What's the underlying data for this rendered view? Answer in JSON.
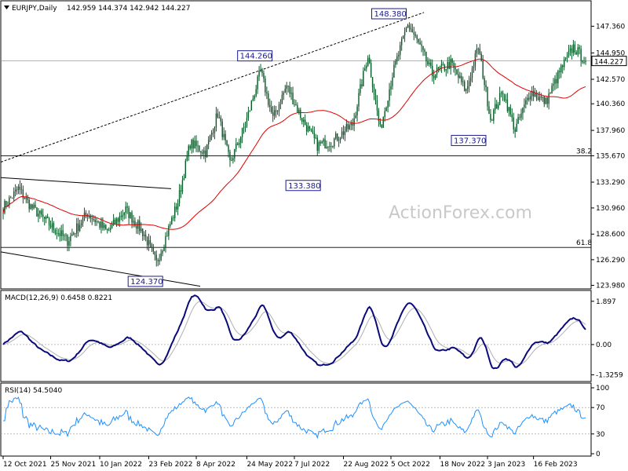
{
  "header": {
    "symbol": "EURJPY,Daily",
    "ohlc": "142.959 144.374 142.942 144.227"
  },
  "watermark": "ActionForex.com",
  "chart_data": [
    {
      "type": "candlestick",
      "panel": "price",
      "title": "EURJPY,Daily 142.959 144.374 142.942 144.227",
      "y_ticks": [
        147.36,
        144.95,
        142.57,
        140.36,
        137.96,
        135.67,
        133.29,
        130.96,
        128.6,
        126.29,
        123.98
      ],
      "y_tick_labels": [
        "147.360",
        "144.950",
        "142.570",
        "140.360",
        "137.960",
        "135.670",
        "133.290",
        "130.960",
        "128.600",
        "126.290",
        "123.980"
      ],
      "ylim": [
        123.8,
        149.3
      ],
      "last_price": "144.227",
      "x_ticks": [
        "12 Oct 2021",
        "25 Nov 2021",
        "10 Jan 2022",
        "23 Feb 2022",
        "8 Apr 2022",
        "24 May 2022",
        "7 Jul 2022",
        "22 Aug 2022",
        "5 Oct 2022",
        "18 Nov 2022",
        "3 Jan 2023",
        "16 Feb 2023"
      ],
      "anchors": [
        {
          "date_index": 0,
          "close": 131.0
        },
        {
          "date_index": 10,
          "close": 132.7
        },
        {
          "date_index": 18,
          "close": 131.1
        },
        {
          "date_index": 30,
          "close": 129.5
        },
        {
          "date_index": 42,
          "close": 128.0
        },
        {
          "date_index": 55,
          "close": 130.5
        },
        {
          "date_index": 68,
          "close": 128.8
        },
        {
          "date_index": 80,
          "close": 130.8
        },
        {
          "date_index": 92,
          "close": 128.6
        },
        {
          "date_index": 100,
          "close": 126.0
        },
        {
          "date_index": 104,
          "close": 127.5
        },
        {
          "date_index": 114,
          "close": 131.5
        },
        {
          "date_index": 122,
          "close": 136.8
        },
        {
          "date_index": 132,
          "close": 136.0
        },
        {
          "date_index": 140,
          "close": 139.5
        },
        {
          "date_index": 148,
          "close": 135.0
        },
        {
          "date_index": 158,
          "close": 138.5
        },
        {
          "date_index": 168,
          "close": 143.3
        },
        {
          "date_index": 176,
          "close": 139.0
        },
        {
          "date_index": 185,
          "close": 142.0
        },
        {
          "date_index": 195,
          "close": 139.0
        },
        {
          "date_index": 205,
          "close": 136.6
        },
        {
          "date_index": 215,
          "close": 137.0
        },
        {
          "date_index": 228,
          "close": 138.5
        },
        {
          "date_index": 238,
          "close": 144.8
        },
        {
          "date_index": 246,
          "close": 138.0
        },
        {
          "date_index": 254,
          "close": 143.0
        },
        {
          "date_index": 264,
          "close": 147.6
        },
        {
          "date_index": 272,
          "close": 145.5
        },
        {
          "date_index": 280,
          "close": 143.0
        },
        {
          "date_index": 292,
          "close": 144.0
        },
        {
          "date_index": 302,
          "close": 141.5
        },
        {
          "date_index": 310,
          "close": 145.5
        },
        {
          "date_index": 318,
          "close": 139.0
        },
        {
          "date_index": 326,
          "close": 141.5
        },
        {
          "date_index": 334,
          "close": 138.0
        },
        {
          "date_index": 344,
          "close": 141.5
        },
        {
          "date_index": 354,
          "close": 140.5
        },
        {
          "date_index": 364,
          "close": 143.5
        },
        {
          "date_index": 372,
          "close": 145.5
        },
        {
          "date_index": 380,
          "close": 144.2
        }
      ],
      "labels": [
        {
          "text": "148.380",
          "date_index": 264,
          "price": 148.38
        },
        {
          "text": "144.260",
          "date_index": 176,
          "price": 144.26
        },
        {
          "text": "133.380",
          "date_index": 208,
          "price": 133.38
        },
        {
          "text": "137.370",
          "date_index": 317,
          "price": 137.37
        },
        {
          "text": "124.370",
          "date_index": 101,
          "price": 124.37
        }
      ],
      "fib_levels": [
        {
          "text": "38.2",
          "price": 135.67
        },
        {
          "text": "61.8",
          "price": 127.4
        }
      ],
      "horizontal_line": 144.227
    },
    {
      "type": "line",
      "panel": "macd",
      "title": "MACD(12,26,9) 0.6458 0.8221",
      "y_tick_labels": [
        "1.897",
        "0.00",
        "-1.3259"
      ],
      "y_ticks": [
        1.897,
        0.0,
        -1.3259
      ],
      "ylim": [
        -1.55,
        2.2
      ]
    },
    {
      "type": "line",
      "panel": "rsi",
      "title": "RSI(14) 54.5040",
      "y_tick_labels": [
        "100",
        "70",
        "30",
        "0"
      ],
      "y_ticks": [
        100,
        70,
        30,
        0
      ],
      "ylim": [
        0,
        100
      ]
    }
  ]
}
